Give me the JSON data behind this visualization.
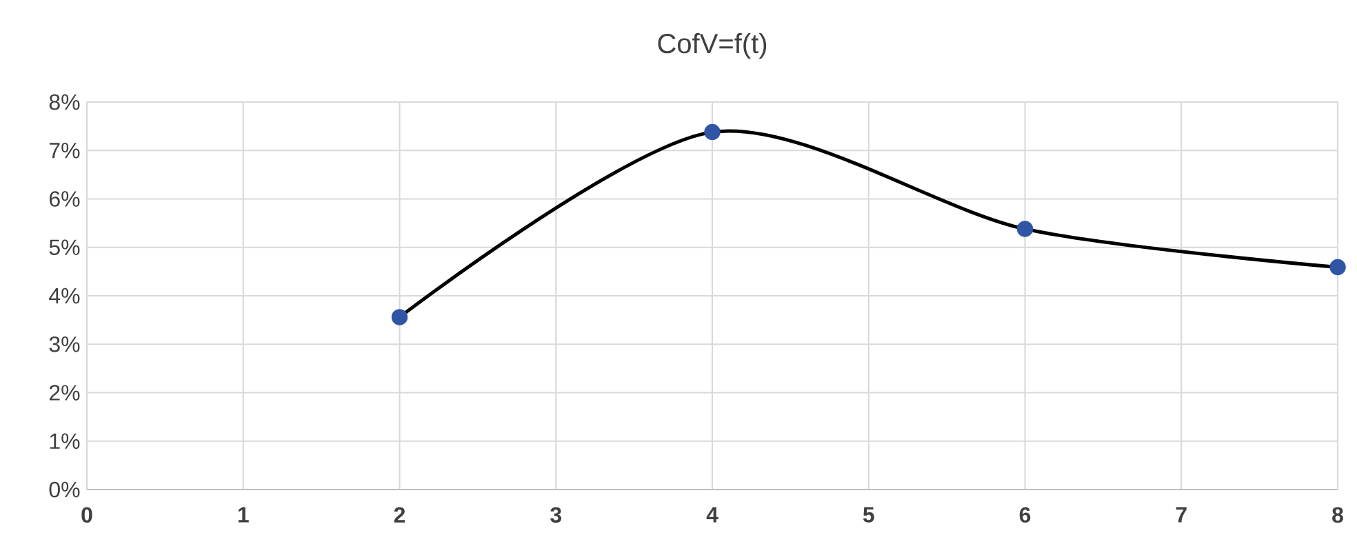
{
  "chart_data": {
    "type": "line",
    "title": "CofV=f(t)",
    "series": [
      {
        "color": "#000000",
        "x": [
          2,
          4,
          6,
          8
        ],
        "values": [
          3.56,
          7.38,
          5.38,
          4.59
        ]
      },
      {
        "type": "scatter",
        "color": "#2f55a4",
        "x": [
          2,
          4,
          6,
          8
        ],
        "values": [
          3.56,
          7.38,
          5.38,
          4.59
        ],
        "marker": "circle"
      }
    ],
    "xlim": [
      0,
      8
    ],
    "xticks": [
      0,
      1,
      2,
      3,
      4,
      5,
      6,
      7,
      8
    ],
    "ylim": [
      0,
      8
    ],
    "yticks": [
      {
        "value": 0,
        "label": "0%"
      },
      {
        "value": 1,
        "label": "1%"
      },
      {
        "value": 2,
        "label": "2%"
      },
      {
        "value": 3,
        "label": "3%"
      },
      {
        "value": 4,
        "label": "4%"
      },
      {
        "value": 5,
        "label": "5%"
      },
      {
        "value": 6,
        "label": "6%"
      },
      {
        "value": 7,
        "label": "7%"
      },
      {
        "value": 8,
        "label": "8%"
      }
    ],
    "grid": true
  }
}
